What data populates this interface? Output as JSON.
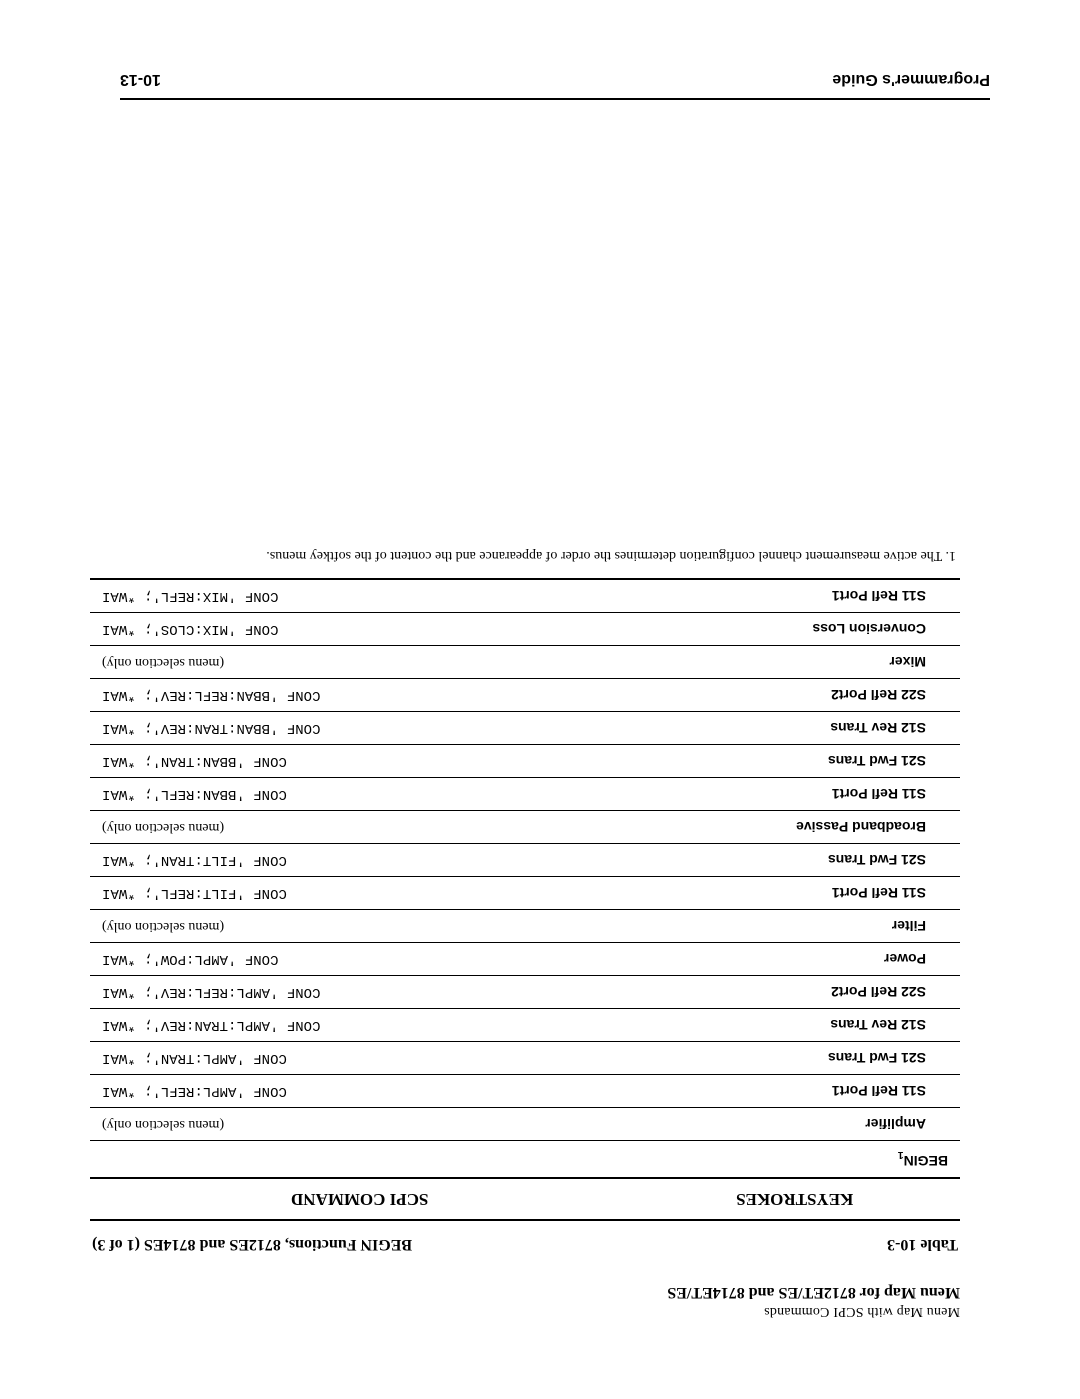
{
  "header": {
    "topline": "Menu Map with SCPI Commands",
    "section_title": "Menu Map for 8712ET/ES and 8714ET/ES"
  },
  "caption": {
    "table_label": "Table 10-3",
    "table_title": "BEGIN Functions, 8712ES and 8714ES (1 of 3)"
  },
  "table": {
    "head": {
      "keystrokes": "KEYSTROKES",
      "scpi": "SCPI COMMAND"
    },
    "rows": [
      {
        "k": "BEGIN",
        "sub": "1",
        "s": "",
        "indent": false,
        "menu": false
      },
      {
        "k": "Amplifier",
        "s": "(menu selection only)",
        "indent": true,
        "menu": true
      },
      {
        "k": "S11 Refl Port1",
        "s": "CONF 'AMPL:REFL'; *WAI",
        "indent": true,
        "menu": false
      },
      {
        "k": "S21 Fwd Trans",
        "s": "CONF 'AMPL:TRAN'; *WAI",
        "indent": true,
        "menu": false
      },
      {
        "k": "S12 Rev Trans",
        "s": "CONF 'AMPL:TRAN:REV'; *WAI",
        "indent": true,
        "menu": false
      },
      {
        "k": "S22 Refl Port2",
        "s": "CONF 'AMPL:REFL:REV'; *WAI",
        "indent": true,
        "menu": false
      },
      {
        "k": "Power",
        "s": "CONF 'AMPL:POW'; *WAI",
        "indent": true,
        "menu": false
      },
      {
        "k": "Filter",
        "s": "(menu selection only)",
        "indent": true,
        "menu": true
      },
      {
        "k": "S11 Refl Port1",
        "s": "CONF 'FILT:REFL'; *WAI",
        "indent": true,
        "menu": false
      },
      {
        "k": "S21 Fwd Trans",
        "s": "CONF 'FILT:TRAN'; *WAI",
        "indent": true,
        "menu": false
      },
      {
        "k": "Broadband Passive",
        "s": "(menu selection only)",
        "indent": true,
        "menu": true
      },
      {
        "k": "S11 Refl Port1",
        "s": "CONF 'BBAN:REFL'; *WAI",
        "indent": true,
        "menu": false
      },
      {
        "k": "S21 Fwd Trans",
        "s": "CONF 'BBAN:TRAN'; *WAI",
        "indent": true,
        "menu": false
      },
      {
        "k": "S12 Rev Trans",
        "s": "CONF 'BBAN:TRAN:REV'; *WAI",
        "indent": true,
        "menu": false
      },
      {
        "k": "S22 Refl Port2",
        "s": "CONF 'BBAN:REFL:REV'; *WAI",
        "indent": true,
        "menu": false
      },
      {
        "k": "Mixer",
        "s": "(menu selection only)",
        "indent": true,
        "menu": true
      },
      {
        "k": "Conversion Loss",
        "s": "CONF 'MIX:CLOS'; *WAI",
        "indent": true,
        "menu": false
      },
      {
        "k": "S11 Refl Port1",
        "s": "CONF 'MIX:REFL'; *WAI",
        "indent": true,
        "menu": false
      }
    ]
  },
  "footnote": "1. The active measurement channel configuration determines the order of appearance and the content of the softkey menus.",
  "footer": {
    "left": "Programmer's Guide",
    "right": "10-13"
  }
}
